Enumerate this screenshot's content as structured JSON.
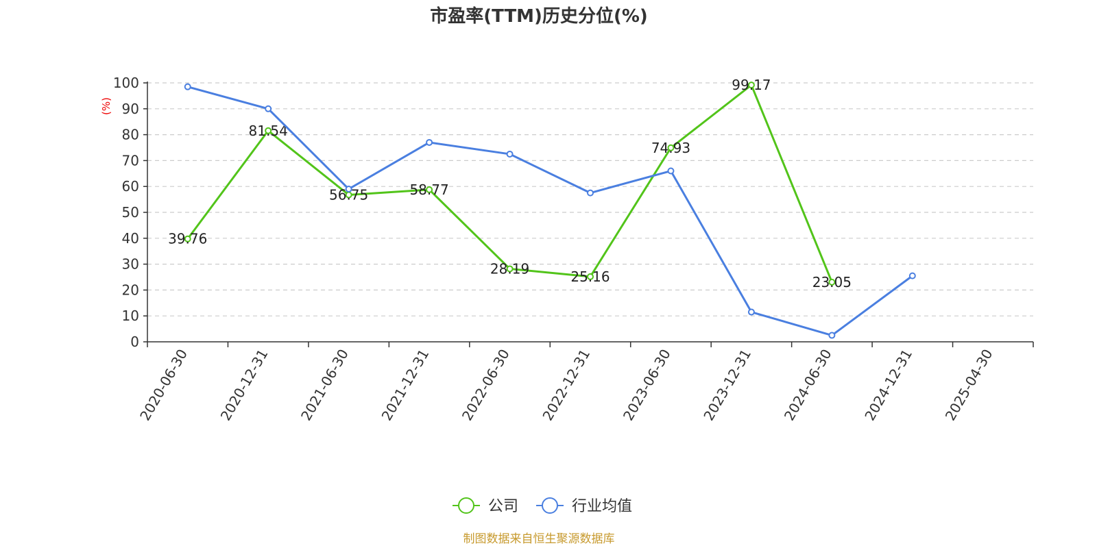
{
  "chart_data": {
    "type": "line",
    "title": "市盈率(TTM)历史分位(%)",
    "ylabel": "(%)",
    "xlabel": "",
    "ylim": [
      0,
      100
    ],
    "yticks": [
      0,
      10,
      20,
      30,
      40,
      50,
      60,
      70,
      80,
      90,
      100
    ],
    "grid": true,
    "legend_position": "bottom-center",
    "categories": [
      "2020-06-30",
      "2020-12-31",
      "2021-06-30",
      "2021-12-31",
      "2022-06-30",
      "2022-12-31",
      "2023-06-30",
      "2023-12-31",
      "2024-06-30",
      "2024-12-31",
      "2025-04-30"
    ],
    "series": [
      {
        "name": "公司",
        "color": "#52c41a",
        "show_labels": true,
        "values": [
          39.76,
          81.54,
          56.75,
          58.77,
          28.19,
          25.16,
          74.93,
          99.17,
          23.05,
          null,
          null
        ]
      },
      {
        "name": "行业均值",
        "color": "#4a7fe0",
        "show_labels": false,
        "values": [
          98.5,
          90.0,
          59.0,
          77.0,
          72.5,
          57.5,
          66.0,
          11.5,
          2.5,
          25.5,
          null
        ]
      }
    ],
    "source": "制图数据来自恒生聚源数据库"
  }
}
